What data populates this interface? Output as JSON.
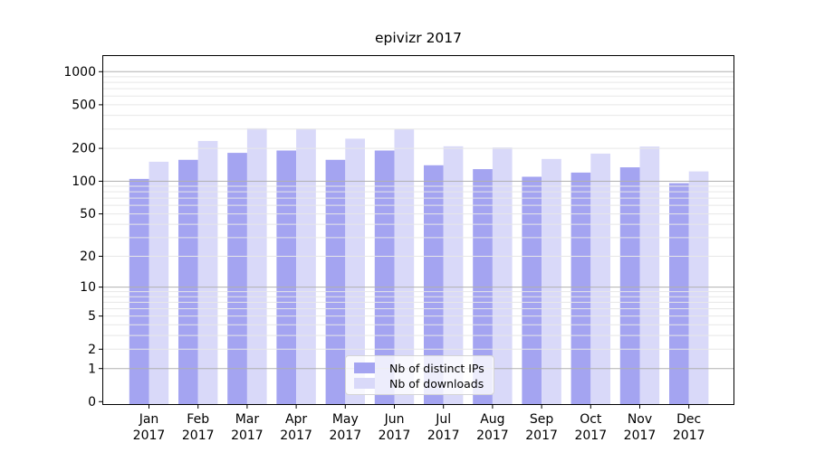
{
  "chart_data": {
    "type": "bar",
    "title": "epivizr 2017",
    "categories": [
      "Jan",
      "Feb",
      "Mar",
      "Apr",
      "May",
      "Jun",
      "Jul",
      "Aug",
      "Sep",
      "Oct",
      "Nov",
      "Dec"
    ],
    "year": "2017",
    "series": [
      {
        "name": "Nb of distinct IPs",
        "color": "#a4a4f1",
        "values": [
          105,
          157,
          182,
          191,
          157,
          191,
          140,
          129,
          110,
          120,
          134,
          96
        ]
      },
      {
        "name": "Nb of downloads",
        "color": "#d9d9f9",
        "values": [
          151,
          234,
          305,
          303,
          245,
          300,
          209,
          204,
          160,
          179,
          208,
          123
        ]
      }
    ],
    "xlabel": "",
    "ylabel": "",
    "y_scale": "log1p",
    "y_ticks": [
      0,
      1,
      2,
      5,
      10,
      20,
      50,
      100,
      200,
      500,
      1000
    ],
    "ylim": [
      0,
      1400
    ],
    "grid": true,
    "legend_position": "bottom-center",
    "style": {
      "grid_decade_color": "#b0b0b0",
      "grid_minor_color": "#e7e7e7",
      "axis_color": "#000000",
      "text_color": "#000000",
      "background": "#ffffff"
    }
  }
}
